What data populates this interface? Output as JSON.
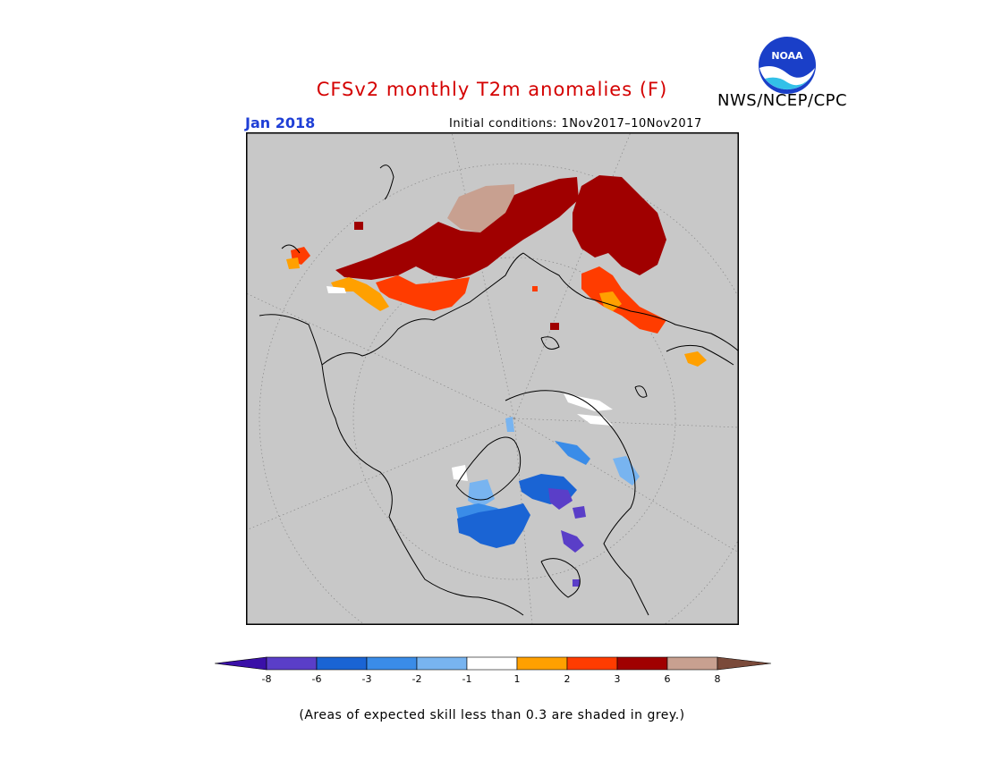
{
  "header": {
    "title": "CFSv2 monthly T2m anomalies (F)",
    "month": "Jan 2018",
    "initial_conditions": "Initial conditions: 1Nov2017–10Nov2017",
    "agency": "NWS/NCEP/CPC",
    "logo_text": "NOAA"
  },
  "legend": {
    "labels": [
      "-8",
      "-6",
      "-3",
      "-2",
      "-1",
      "1",
      "2",
      "3",
      "6",
      "8"
    ],
    "colors": [
      "#3a10a8",
      "#5a3ec8",
      "#1a64d4",
      "#3a8ce8",
      "#78b4f0",
      "#ffffff",
      "#ffa000",
      "#ff3c00",
      "#a00000",
      "#c8a090",
      "#7a4a3a"
    ],
    "footnote": "(Areas of expected skill less than 0.3 are shaded in grey.)"
  },
  "map": {
    "projection": "polar stereographic (north pole)",
    "background_color": "#c8c8c8",
    "skill_mask_color": "#c8c8c8"
  }
}
